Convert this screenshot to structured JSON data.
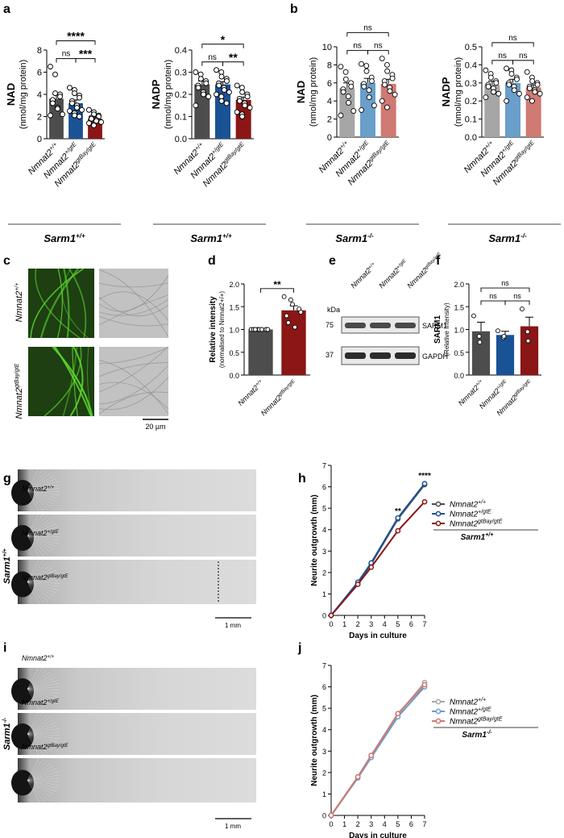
{
  "colors": {
    "grey": "#4d4d4d",
    "blue": "#1a5296",
    "red": "#8a1616",
    "lgrey": "#a6a6a6",
    "lblue": "#6a9ecb",
    "lred": "#cf7a72",
    "fluor": "#1d3f12",
    "fluor_bright": "#5cd32e",
    "bright_bg": "#d8d8d8",
    "dark_bg": "#b9b9b9"
  },
  "geno": {
    "wt": "Nmnat2",
    "wt_sup": "+/+",
    "het": "Nmnat2",
    "het_sup": "+/gtE",
    "hom": "Nmnat2",
    "hom_sup": "gtBay/gtE"
  },
  "sarm_pos": "Sarm1",
  "sarm_pos_sup": "+/+",
  "sarm_neg": "Sarm1",
  "sarm_neg_sup": "-/-",
  "panels": {
    "a": "a",
    "b": "b",
    "c": "c",
    "d": "d",
    "e": "e",
    "f": "f",
    "g": "g",
    "h": "h",
    "i": "i",
    "j": "j"
  },
  "units": {
    "nmol": "(nmol/mg protein)",
    "scale_um": "20 µm",
    "scale_mm": "1 mm"
  },
  "sig": {
    "ns": "ns",
    "s1": "*",
    "s2": "**",
    "s3": "***",
    "s4": "****"
  },
  "chart_data": [
    {
      "panel": "a-NAD",
      "type": "bar",
      "ylabel": "NAD",
      "ylim": [
        0,
        8
      ],
      "yticks": [
        "0",
        "2",
        "4",
        "6",
        "8"
      ],
      "categories": [
        "Nmnat2+/+",
        "Nmnat2+/gtE",
        "Nmnat2gtBay/gtE"
      ],
      "values": [
        3.6,
        3.2,
        1.8
      ],
      "errors": [
        0.4,
        0.3,
        0.15
      ],
      "points": [
        [
          6.5,
          5.8,
          4.1,
          4.0,
          3.8,
          3.5,
          3.2,
          2.8,
          2.7,
          2.2,
          2.1
        ],
        [
          4.6,
          4.4,
          4.1,
          3.9,
          3.7,
          3.4,
          3.2,
          3.0,
          2.8,
          2.6,
          2.5,
          2.3,
          2.1,
          2.0
        ],
        [
          2.6,
          2.4,
          2.2,
          2.1,
          2.0,
          1.9,
          1.8,
          1.7,
          1.6,
          1.5,
          1.4,
          1.2
        ]
      ],
      "brackets": [
        [
          0,
          1,
          "ns",
          0
        ],
        [
          1,
          2,
          "***",
          0
        ],
        [
          0,
          2,
          "****",
          1
        ]
      ],
      "group": "Sarm1+/+"
    },
    {
      "panel": "a-NADP",
      "type": "bar",
      "ylabel": "NADP",
      "ylim": [
        0,
        0.4
      ],
      "yticks": [
        "0.0",
        "0.1",
        "0.2",
        "0.3",
        "0.4"
      ],
      "categories": [
        "Nmnat2+/+",
        "Nmnat2+/gtE",
        "Nmnat2gtBay/gtE"
      ],
      "values": [
        0.245,
        0.245,
        0.175
      ],
      "errors": [
        0.015,
        0.012,
        0.013
      ],
      "points": [
        [
          0.3,
          0.29,
          0.27,
          0.26,
          0.25,
          0.24,
          0.23,
          0.21,
          0.2,
          0.19,
          0.15
        ],
        [
          0.31,
          0.3,
          0.28,
          0.27,
          0.26,
          0.25,
          0.24,
          0.23,
          0.22,
          0.21,
          0.2,
          0.19,
          0.17,
          0.16
        ],
        [
          0.24,
          0.23,
          0.21,
          0.2,
          0.19,
          0.18,
          0.17,
          0.16,
          0.15,
          0.14,
          0.12,
          0.11,
          0.1
        ]
      ],
      "brackets": [
        [
          0,
          1,
          "ns",
          0
        ],
        [
          1,
          2,
          "**",
          0
        ],
        [
          0,
          2,
          "*",
          1
        ]
      ],
      "group": "Sarm1+/+"
    },
    {
      "panel": "b-NAD",
      "type": "bar",
      "ylabel": "NAD",
      "ylim": [
        0,
        10
      ],
      "yticks": [
        "0",
        "2",
        "4",
        "6",
        "8",
        "10"
      ],
      "categories": [
        "Nmnat2+/+",
        "Nmnat2+/gtE",
        "Nmnat2gtBay/gtE"
      ],
      "values": [
        5.4,
        6.0,
        5.9
      ],
      "errors": [
        0.6,
        0.5,
        0.5
      ],
      "points": [
        [
          7.8,
          7.2,
          6.4,
          6.0,
          5.6,
          5.3,
          5.0,
          4.5,
          3.8,
          2.9,
          2.4
        ],
        [
          8.1,
          7.9,
          7.3,
          6.6,
          6.2,
          5.9,
          5.6,
          5.2,
          4.4,
          3.5,
          3.0
        ],
        [
          8.7,
          8.0,
          7.3,
          6.9,
          6.5,
          6.2,
          5.8,
          5.5,
          5.1,
          4.7,
          4.0,
          3.3
        ]
      ],
      "brackets": [
        [
          0,
          1,
          "ns",
          0
        ],
        [
          1,
          2,
          "ns",
          0
        ],
        [
          0,
          2,
          "ns",
          1
        ]
      ],
      "group": "Sarm1-/-"
    },
    {
      "panel": "b-NADP",
      "type": "bar",
      "ylabel": "NADP",
      "ylim": [
        0,
        0.5
      ],
      "yticks": [
        "0.0",
        "0.1",
        "0.2",
        "0.3",
        "0.4",
        "0.5"
      ],
      "categories": [
        "Nmnat2+/+",
        "Nmnat2+/gtE",
        "Nmnat2gtBay/gtE"
      ],
      "values": [
        0.29,
        0.3,
        0.275
      ],
      "errors": [
        0.02,
        0.02,
        0.015
      ],
      "points": [
        [
          0.37,
          0.35,
          0.33,
          0.31,
          0.3,
          0.29,
          0.28,
          0.27,
          0.25,
          0.24,
          0.22
        ],
        [
          0.38,
          0.37,
          0.35,
          0.33,
          0.32,
          0.3,
          0.29,
          0.28,
          0.26,
          0.24,
          0.2
        ],
        [
          0.36,
          0.33,
          0.31,
          0.3,
          0.29,
          0.28,
          0.27,
          0.26,
          0.25,
          0.24,
          0.22,
          0.2
        ]
      ],
      "brackets": [
        [
          0,
          1,
          "ns",
          0
        ],
        [
          1,
          2,
          "ns",
          0
        ],
        [
          0,
          2,
          "ns",
          1
        ]
      ],
      "group": "Sarm1-/-"
    },
    {
      "panel": "d",
      "type": "bar",
      "ylabel": "Relative intensity",
      "ylabel2": "(normalised to Nmnat2+/+)",
      "ylim": [
        0,
        2.0
      ],
      "yticks": [
        "0.0",
        "0.5",
        "1.0",
        "1.5",
        "2.0"
      ],
      "categories": [
        "Nmnat2+/+",
        "Nmnat2gtBay/gtE"
      ],
      "values": [
        1.0,
        1.42
      ],
      "errors": [
        0.0,
        0.1
      ],
      "points": [
        [
          1,
          1,
          1,
          1,
          1,
          1,
          1,
          1
        ],
        [
          1.72,
          1.65,
          1.55,
          1.45,
          1.38,
          1.3,
          1.15,
          1.05
        ]
      ],
      "brackets": [
        [
          0,
          1,
          "**",
          0
        ]
      ]
    },
    {
      "panel": "f",
      "type": "bar",
      "ylabel": "SARM1",
      "ylabel2": "(Relative Intensity)",
      "ylim": [
        0,
        2.0
      ],
      "yticks": [
        "0.0",
        "0.5",
        "1.0",
        "1.5",
        "2.0"
      ],
      "categories": [
        "Nmnat2+/+",
        "Nmnat2+/gtE",
        "Nmnat2gtBay/gtE"
      ],
      "values": [
        0.96,
        0.88,
        1.07
      ],
      "errors": [
        0.2,
        0.08,
        0.2
      ],
      "points": [
        [
          1.3,
          0.85,
          0.72
        ],
        [
          0.97,
          0.82,
          0.85
        ],
        [
          1.45,
          0.95,
          0.75
        ]
      ],
      "brackets": [
        [
          0,
          1,
          "ns",
          0
        ],
        [
          1,
          2,
          "ns",
          0
        ],
        [
          0,
          2,
          "ns",
          1
        ]
      ]
    },
    {
      "panel": "h",
      "type": "line",
      "xlabel": "Days in culture",
      "ylabel": "Neurite outgrowth (mm)",
      "xlim": [
        0,
        7
      ],
      "ylim": [
        0,
        7
      ],
      "xticks": [
        "0",
        "1",
        "2",
        "3",
        "4",
        "5",
        "6",
        "7"
      ],
      "yticks": [
        "0",
        "1",
        "2",
        "3",
        "4",
        "5",
        "6",
        "7"
      ],
      "x": [
        0,
        2,
        3,
        5,
        7
      ],
      "series": [
        {
          "name": "Nmnat2+/+",
          "values": [
            0,
            1.5,
            2.4,
            4.5,
            6.1
          ]
        },
        {
          "name": "Nmnat2+/gtE",
          "values": [
            0,
            1.55,
            2.45,
            4.55,
            6.15
          ]
        },
        {
          "name": "Nmnat2gtBay/gtE",
          "values": [
            0,
            1.45,
            2.25,
            3.95,
            5.3
          ]
        }
      ],
      "annotations": [
        {
          "x": 5,
          "y": 4.75,
          "text": "**"
        },
        {
          "x": 7,
          "y": 6.4,
          "text": "****"
        }
      ],
      "legend": "right",
      "group": "Sarm1+/+"
    },
    {
      "panel": "j",
      "type": "line",
      "xlabel": "Days in culture",
      "ylabel": "Neurite outgrowth (mm)",
      "xlim": [
        0,
        7
      ],
      "ylim": [
        0,
        7
      ],
      "xticks": [
        "0",
        "1",
        "2",
        "3",
        "4",
        "5",
        "6",
        "7"
      ],
      "yticks": [
        "0",
        "1",
        "2",
        "3",
        "4",
        "5",
        "6",
        "7"
      ],
      "x": [
        0,
        2,
        3,
        5,
        7
      ],
      "series": [
        {
          "name": "Nmnat2+/+",
          "values": [
            0,
            1.8,
            2.8,
            4.7,
            6.2
          ]
        },
        {
          "name": "Nmnat2+/gtE",
          "values": [
            0,
            1.75,
            2.7,
            4.6,
            6.0
          ]
        },
        {
          "name": "Nmnat2gtBay/gtE",
          "values": [
            0,
            1.8,
            2.8,
            4.75,
            6.1
          ]
        }
      ],
      "legend": "right",
      "group": "Sarm1-/-"
    }
  ],
  "blot": {
    "kda_label": "kDa",
    "marker_75": "75",
    "marker_37": "37",
    "band1": "SARM1",
    "band2": "GAPDH"
  }
}
